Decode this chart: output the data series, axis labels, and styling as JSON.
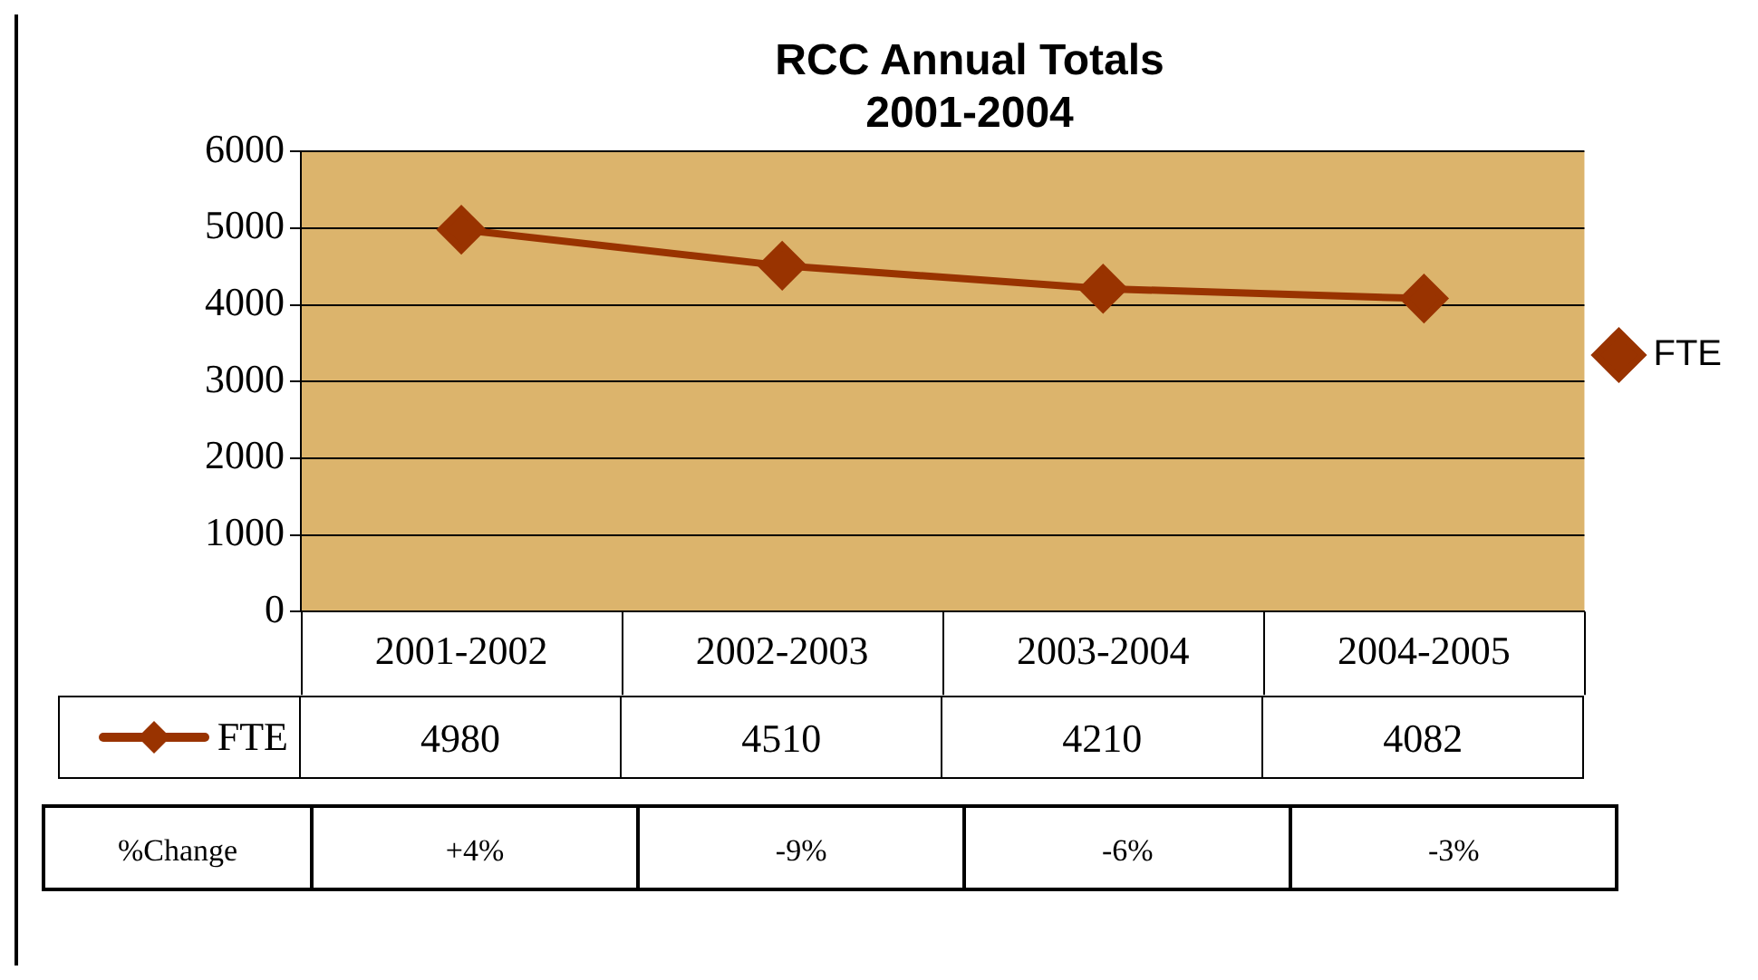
{
  "chart_data": {
    "type": "line",
    "title": "RCC Annual Totals\n2001-2004",
    "categories": [
      "2001-2002",
      "2002-2003",
      "2003-2004",
      "2004-2005"
    ],
    "series": [
      {
        "name": "FTE",
        "color": "#993300",
        "values": [
          4980,
          4510,
          4210,
          4082
        ]
      }
    ],
    "ylim": [
      0,
      6000
    ],
    "yticks": [
      0,
      1000,
      2000,
      3000,
      4000,
      5000,
      6000
    ],
    "grid": "y",
    "legend": "right",
    "marker": "diamond",
    "line_style": "solid",
    "data_labels": true,
    "annotations": [
      "%Change",
      "+4%",
      "-9%",
      "-6%",
      "-3%"
    ]
  }
}
